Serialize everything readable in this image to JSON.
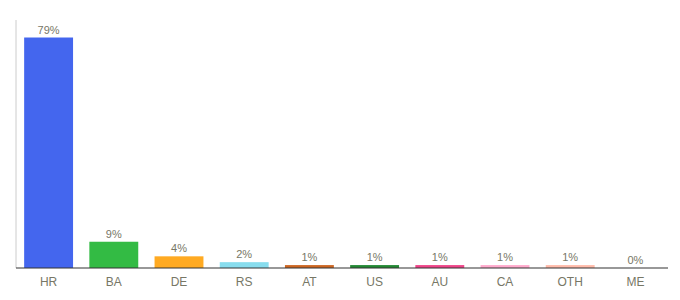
{
  "chart_data": {
    "type": "bar",
    "categories": [
      "HR",
      "BA",
      "DE",
      "RS",
      "AT",
      "US",
      "AU",
      "CA",
      "OTH",
      "ME"
    ],
    "values": [
      79,
      9,
      4,
      2,
      1,
      1,
      1,
      1,
      1,
      0
    ],
    "value_labels": [
      "79%",
      "9%",
      "4%",
      "2%",
      "1%",
      "1%",
      "1%",
      "1%",
      "1%",
      "0%"
    ],
    "colors": [
      "#4466ee",
      "#33bb44",
      "#ffaa22",
      "#88ddee",
      "#cc6622",
      "#228833",
      "#ee4488",
      "#ffaacc",
      "#ffbbaa",
      "#ddaaaa"
    ],
    "ylim": [
      0,
      85
    ],
    "data_labels": true,
    "tick_labels": "x"
  }
}
